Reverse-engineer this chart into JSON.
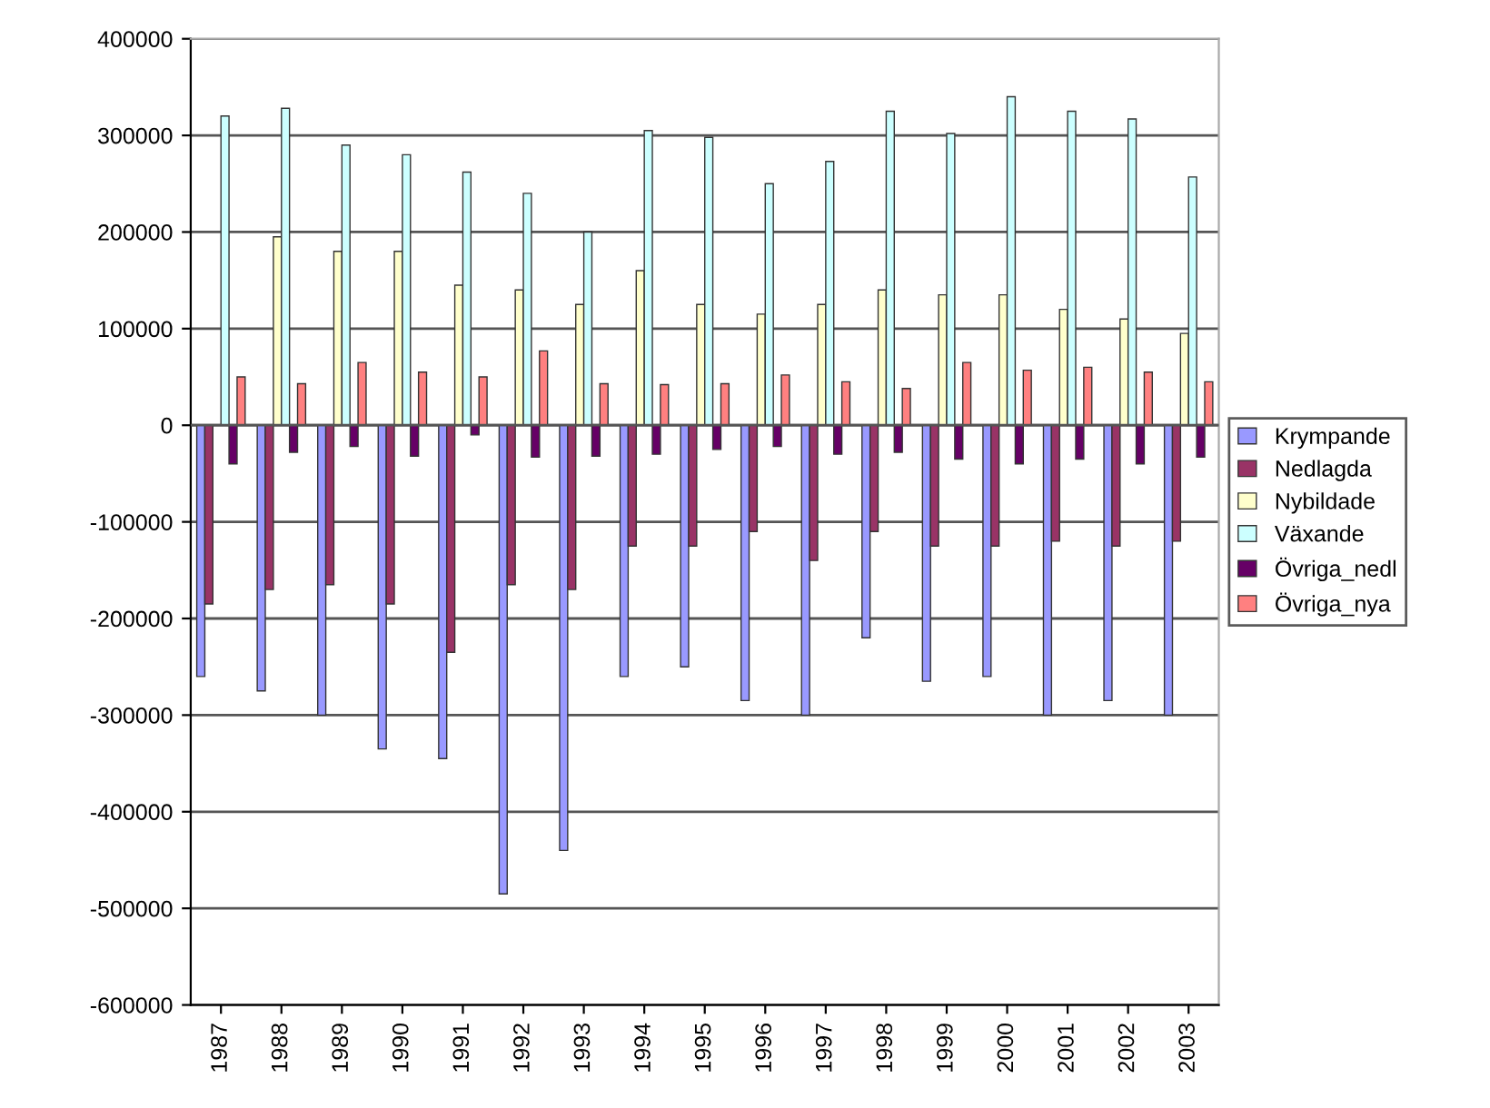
{
  "chart_data": {
    "type": "bar",
    "categories": [
      "1987",
      "1988",
      "1989",
      "1990",
      "1991",
      "1992",
      "1993",
      "1994",
      "1995",
      "1996",
      "1997",
      "1998",
      "1999",
      "2000",
      "2001",
      "2002",
      "2003"
    ],
    "series": [
      {
        "name": "Krympande",
        "color": "#9999ff",
        "values": [
          -260000,
          -275000,
          -300000,
          -335000,
          -345000,
          -485000,
          -440000,
          -260000,
          -250000,
          -285000,
          -300000,
          -220000,
          -265000,
          -260000,
          -300000,
          -285000,
          -300000
        ]
      },
      {
        "name": "Nedlagda",
        "color": "#993366",
        "values": [
          -185000,
          -170000,
          -165000,
          -185000,
          -235000,
          -165000,
          -170000,
          -125000,
          -125000,
          -110000,
          -140000,
          -110000,
          -125000,
          -125000,
          -120000,
          -125000,
          -120000
        ]
      },
      {
        "name": "Nybildade",
        "color": "#ffffcc",
        "values": [
          null,
          195000,
          180000,
          180000,
          145000,
          140000,
          125000,
          160000,
          125000,
          115000,
          125000,
          140000,
          135000,
          135000,
          120000,
          110000,
          95000
        ]
      },
      {
        "name": "Växande",
        "color": "#ccffff",
        "values": [
          320000,
          328000,
          290000,
          280000,
          262000,
          240000,
          200000,
          305000,
          298000,
          250000,
          273000,
          325000,
          302000,
          340000,
          325000,
          317000,
          257000
        ]
      },
      {
        "name": "Övriga_nedl",
        "color": "#660066",
        "values": [
          -40000,
          -28000,
          -22000,
          -32000,
          -10000,
          -33000,
          -32000,
          -30000,
          -25000,
          -22000,
          -30000,
          -28000,
          -35000,
          -40000,
          -35000,
          -40000,
          -33000
        ]
      },
      {
        "name": "Övriga_nya",
        "color": "#ff8080",
        "values": [
          50000,
          43000,
          65000,
          55000,
          50000,
          77000,
          43000,
          42000,
          43000,
          52000,
          45000,
          38000,
          65000,
          57000,
          60000,
          55000,
          45000
        ]
      }
    ],
    "ylim": [
      -600000,
      400000
    ],
    "yticks": [
      -600000,
      -500000,
      -400000,
      -300000,
      -200000,
      -100000,
      0,
      100000,
      200000,
      300000,
      400000
    ],
    "grid": "y",
    "legend": "right"
  }
}
